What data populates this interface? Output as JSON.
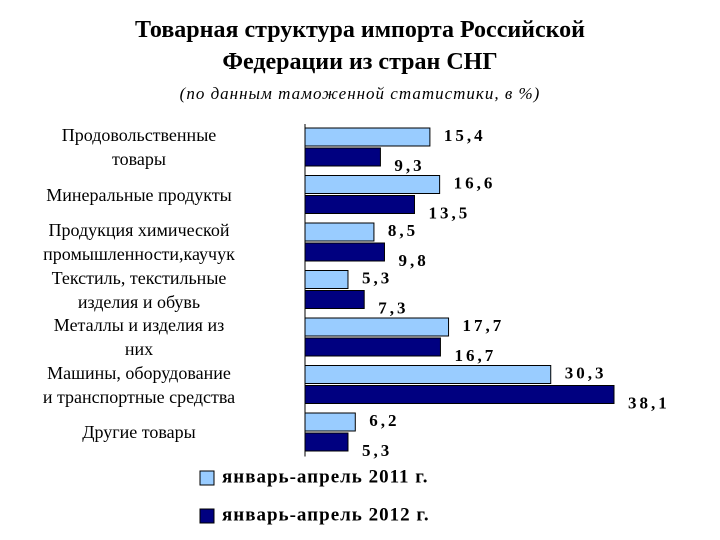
{
  "chart_data": {
    "type": "bar",
    "orientation": "horizontal",
    "title": "Товарная структура импорта Российской Федерации из стран СНГ",
    "subtitle": "(по данным таможенной статистики, в %)",
    "categories": [
      "Продовольственные\nтовары",
      "Минеральные продукты",
      "Продукция химической\nпромышленности,каучук",
      "Текстиль, текстильные\nизделия и обувь",
      "Металлы и изделия из\nних",
      "Машины, оборудование\nи транспортные средства",
      "Другие товары"
    ],
    "series": [
      {
        "name": "январь-апрель 2011 г.",
        "color": "#99ccff",
        "values": [
          15.4,
          16.6,
          8.5,
          5.3,
          17.7,
          30.3,
          6.2
        ],
        "value_labels": [
          "15,4",
          "16,6",
          "8,5",
          "5,3",
          "17,7",
          "30,3",
          "6,2"
        ]
      },
      {
        "name": "январь-апрель 2012 г.",
        "color": "#000080",
        "values": [
          9.3,
          13.5,
          9.8,
          7.3,
          16.7,
          38.1,
          5.3
        ],
        "value_labels": [
          "9,3",
          "13,5",
          "9,8",
          "7,3",
          "16,7",
          "38,1",
          "5,3"
        ]
      }
    ],
    "legend": "bottom"
  }
}
